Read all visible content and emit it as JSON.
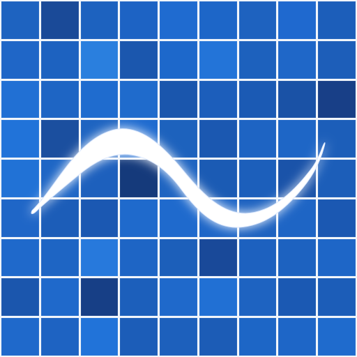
{
  "icon": {
    "grid": {
      "rows": 9,
      "cols": 9,
      "tile_colors": [
        [
          "#1e63c0",
          "#1a4a98",
          "#1d62bf",
          "#1d63c4",
          "#1f6bd0",
          "#1d66c8",
          "#1e62bf",
          "#1f69cf",
          "#1c5eba"
        ],
        [
          "#1f66c7",
          "#1d62c0",
          "#2a7fde",
          "#1b57ae",
          "#1d68cb",
          "#2374d8",
          "#1d61bd",
          "#1f67c8",
          "#1d5eb9"
        ],
        [
          "#2170d4",
          "#1e65c4",
          "#1f6ccf",
          "#1f6bcc",
          "#1a56ad",
          "#1c5ebb",
          "#1b5ab4",
          "#1a52a6",
          "#183f87"
        ],
        [
          "#2173d9",
          "#1b4f9f",
          "#1e64c1",
          "#1f6bcf",
          "#1d62bd",
          "#1b58b1",
          "#1e64c3",
          "#1e66c6",
          "#1c5eb9"
        ],
        [
          "#2172d6",
          "#1e66c5",
          "#1d60bd",
          "#153a7b",
          "#1e64c1",
          "#1b5bb4",
          "#1c5fbb",
          "#1a53a9",
          "#1c5eb9"
        ],
        [
          "#1f66c7",
          "#1c5db8",
          "#1b58b2",
          "#1f6acc",
          "#1f6acd",
          "#1e66c7",
          "#1d62c0",
          "#1e65c5",
          "#1b58b2"
        ],
        [
          "#1f69cb",
          "#1e65c4",
          "#2779dc",
          "#1e65c5",
          "#1c5fba",
          "#194999",
          "#1d61bf",
          "#1d62c0",
          "#1e66c7"
        ],
        [
          "#1b56ad",
          "#1f69cb",
          "#173f86",
          "#1c5fbb",
          "#1f69cb",
          "#2170d4",
          "#1e63c1",
          "#1b59b3",
          "#1c5db8"
        ],
        [
          "#1f69cb",
          "#1e63c2",
          "#2173d9",
          "#1c5db8",
          "#1d60bc",
          "#1c5cb6",
          "#1d66c6",
          "#1e66c7",
          "#1f6bcd"
        ]
      ]
    },
    "wave": {
      "fill_color": "#ffffff",
      "glow_color": "#dce9ff"
    }
  }
}
